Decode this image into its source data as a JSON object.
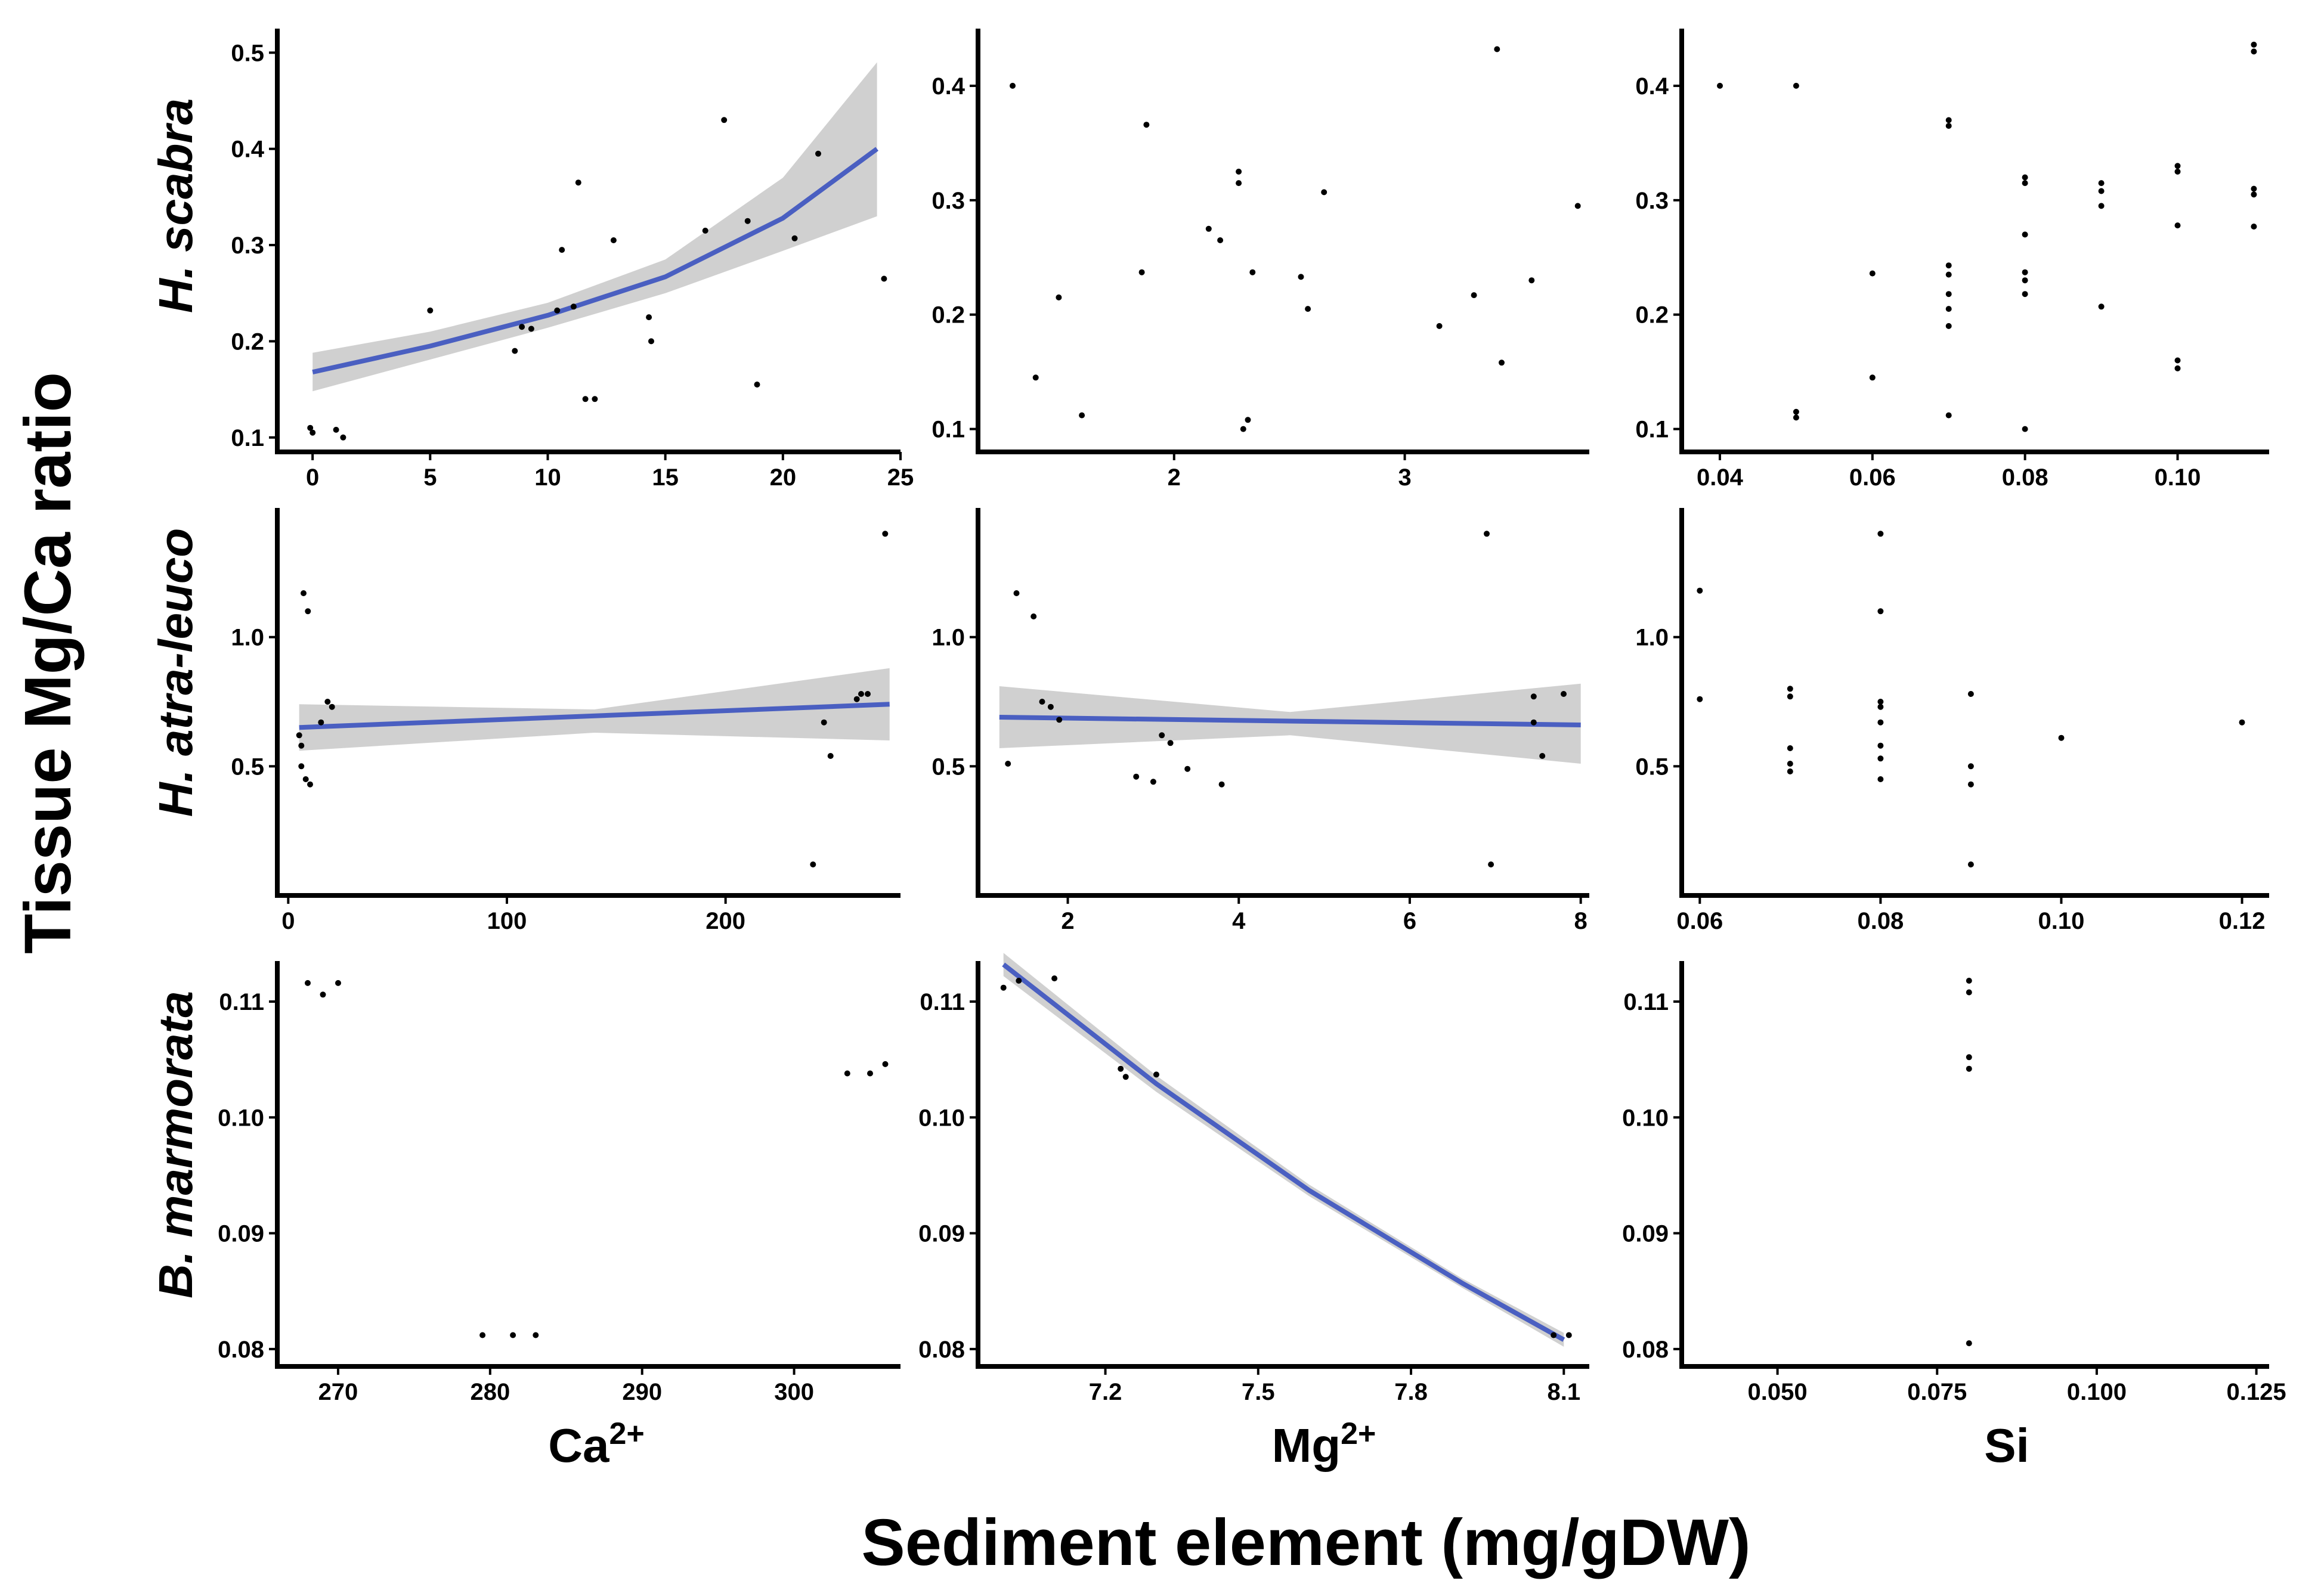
{
  "figure": {
    "ylabel": "Tissue Mg/Ca ratio",
    "xlabel": "Sediment element (mg/gDW)",
    "columns": [
      {
        "label": "Ca",
        "sup": "2+"
      },
      {
        "label": "Mg",
        "sup": "2+"
      },
      {
        "label": "Si",
        "sup": ""
      }
    ],
    "rows": [
      "H. scabra",
      "H. atra-leuco",
      "B. marmorata"
    ],
    "colors": {
      "fit": "#4a5fc1",
      "band": "#c8c8c8",
      "point": "#000000",
      "axis": "#000000"
    }
  },
  "chart_data": [
    {
      "type": "scatter",
      "species": "H. scabra",
      "element": "Ca2+",
      "xlim": [
        -1.5,
        25
      ],
      "ylim": [
        0.085,
        0.525
      ],
      "xticks": [
        0,
        5,
        10,
        15,
        20,
        25
      ],
      "xtick_labels": [
        "0",
        "5",
        "10",
        "15",
        "20",
        "25"
      ],
      "yticks": [
        0.1,
        0.2,
        0.3,
        0.4,
        0.5
      ],
      "ytick_labels": [
        "0.1",
        "0.2",
        "0.3",
        "0.4",
        "0.5"
      ],
      "points": [
        [
          -0.1,
          0.11
        ],
        [
          0,
          0.105
        ],
        [
          1,
          0.108
        ],
        [
          1.3,
          0.1
        ],
        [
          5,
          0.232
        ],
        [
          8.6,
          0.19
        ],
        [
          8.9,
          0.215
        ],
        [
          9.3,
          0.213
        ],
        [
          10.4,
          0.232
        ],
        [
          10.6,
          0.295
        ],
        [
          11.1,
          0.236
        ],
        [
          11.3,
          0.365
        ],
        [
          11.6,
          0.14
        ],
        [
          12,
          0.14
        ],
        [
          12.8,
          0.305
        ],
        [
          14.3,
          0.225
        ],
        [
          14.4,
          0.2
        ],
        [
          16.7,
          0.315
        ],
        [
          17.5,
          0.43
        ],
        [
          18.5,
          0.325
        ],
        [
          18.9,
          0.155
        ],
        [
          20.5,
          0.307
        ],
        [
          21.5,
          0.395
        ],
        [
          24.3,
          0.265
        ]
      ],
      "fit": {
        "x": [
          0,
          5,
          10,
          15,
          20,
          24
        ],
        "y": [
          0.168,
          0.195,
          0.227,
          0.267,
          0.328,
          0.4
        ]
      },
      "band": {
        "x": [
          0,
          5,
          10,
          15,
          20,
          24
        ],
        "lower": [
          0.148,
          0.181,
          0.214,
          0.25,
          0.294,
          0.33
        ],
        "upper": [
          0.188,
          0.21,
          0.24,
          0.285,
          0.37,
          0.49
        ]
      }
    },
    {
      "type": "scatter",
      "species": "H. scabra",
      "element": "Mg2+",
      "xlim": [
        1.15,
        3.8
      ],
      "ylim": [
        0.08,
        0.45
      ],
      "xticks": [
        2,
        3
      ],
      "xtick_labels": [
        "2",
        "3"
      ],
      "yticks": [
        0.1,
        0.2,
        0.3,
        0.4
      ],
      "ytick_labels": [
        "0.1",
        "0.2",
        "0.3",
        "0.4"
      ],
      "points": [
        [
          1.3,
          0.4
        ],
        [
          1.4,
          0.145
        ],
        [
          1.5,
          0.215
        ],
        [
          1.6,
          0.112
        ],
        [
          1.86,
          0.237
        ],
        [
          1.88,
          0.366
        ],
        [
          2.15,
          0.275
        ],
        [
          2.2,
          0.265
        ],
        [
          2.28,
          0.325
        ],
        [
          2.28,
          0.315
        ],
        [
          2.3,
          0.1
        ],
        [
          2.32,
          0.108
        ],
        [
          2.34,
          0.237
        ],
        [
          2.55,
          0.233
        ],
        [
          2.58,
          0.205
        ],
        [
          2.65,
          0.307
        ],
        [
          3.15,
          0.19
        ],
        [
          3.3,
          0.217
        ],
        [
          3.4,
          0.432
        ],
        [
          3.42,
          0.158
        ],
        [
          3.55,
          0.23
        ],
        [
          3.75,
          0.295
        ]
      ],
      "fit": null,
      "band": null
    },
    {
      "type": "scatter",
      "species": "H. scabra",
      "element": "Si",
      "xlim": [
        0.035,
        0.112
      ],
      "ylim": [
        0.08,
        0.45
      ],
      "xticks": [
        0.04,
        0.06,
        0.08,
        0.1
      ],
      "xtick_labels": [
        "0.04",
        "0.06",
        "0.08",
        "0.10"
      ],
      "yticks": [
        0.1,
        0.2,
        0.3,
        0.4
      ],
      "ytick_labels": [
        "0.1",
        "0.2",
        "0.3",
        "0.4"
      ],
      "points": [
        [
          0.04,
          0.4
        ],
        [
          0.05,
          0.4
        ],
        [
          0.05,
          0.115
        ],
        [
          0.05,
          0.11
        ],
        [
          0.06,
          0.236
        ],
        [
          0.06,
          0.145
        ],
        [
          0.07,
          0.37
        ],
        [
          0.07,
          0.365
        ],
        [
          0.07,
          0.243
        ],
        [
          0.07,
          0.235
        ],
        [
          0.07,
          0.218
        ],
        [
          0.07,
          0.205
        ],
        [
          0.07,
          0.19
        ],
        [
          0.07,
          0.112
        ],
        [
          0.08,
          0.32
        ],
        [
          0.08,
          0.315
        ],
        [
          0.08,
          0.27
        ],
        [
          0.08,
          0.237
        ],
        [
          0.08,
          0.23
        ],
        [
          0.08,
          0.218
        ],
        [
          0.08,
          0.1
        ],
        [
          0.09,
          0.315
        ],
        [
          0.09,
          0.308
        ],
        [
          0.09,
          0.295
        ],
        [
          0.09,
          0.207
        ],
        [
          0.1,
          0.33
        ],
        [
          0.1,
          0.325
        ],
        [
          0.1,
          0.278
        ],
        [
          0.1,
          0.16
        ],
        [
          0.1,
          0.153
        ],
        [
          0.11,
          0.436
        ],
        [
          0.11,
          0.43
        ],
        [
          0.11,
          0.31
        ],
        [
          0.11,
          0.305
        ],
        [
          0.11,
          0.277
        ]
      ],
      "fit": null,
      "band": null
    },
    {
      "type": "scatter",
      "species": "H. atra-leuco",
      "element": "Ca2+",
      "xlim": [
        -5,
        280
      ],
      "ylim": [
        0,
        1.5
      ],
      "xticks": [
        0,
        100,
        200
      ],
      "xtick_labels": [
        "0",
        "100",
        "200"
      ],
      "yticks": [
        0.5,
        1.0
      ],
      "ytick_labels": [
        "0.5",
        "1.0"
      ],
      "points": [
        [
          5,
          0.62
        ],
        [
          6,
          0.58
        ],
        [
          6,
          0.5
        ],
        [
          7,
          1.17
        ],
        [
          8,
          0.45
        ],
        [
          9,
          1.1
        ],
        [
          10,
          0.43
        ],
        [
          15,
          0.67
        ],
        [
          18,
          0.75
        ],
        [
          20,
          0.73
        ],
        [
          240,
          0.12
        ],
        [
          245,
          0.67
        ],
        [
          248,
          0.54
        ],
        [
          260,
          0.76
        ],
        [
          262,
          0.78
        ],
        [
          265,
          0.78
        ],
        [
          273,
          1.4
        ]
      ],
      "fit": {
        "x": [
          5,
          275
        ],
        "y": [
          0.65,
          0.74
        ]
      },
      "band": {
        "x": [
          5,
          140,
          275
        ],
        "lower": [
          0.56,
          0.63,
          0.6
        ],
        "upper": [
          0.74,
          0.72,
          0.88
        ]
      }
    },
    {
      "type": "scatter",
      "species": "H. atra-leuco",
      "element": "Mg2+",
      "xlim": [
        0.95,
        8.1
      ],
      "ylim": [
        0,
        1.5
      ],
      "xticks": [
        2,
        4,
        6,
        8
      ],
      "xtick_labels": [
        "2",
        "4",
        "6",
        "8"
      ],
      "yticks": [
        0.5,
        1.0
      ],
      "ytick_labels": [
        "0.5",
        "1.0"
      ],
      "points": [
        [
          1.3,
          0.51
        ],
        [
          1.4,
          1.17
        ],
        [
          1.6,
          1.08
        ],
        [
          1.7,
          0.75
        ],
        [
          1.8,
          0.73
        ],
        [
          1.9,
          0.68
        ],
        [
          2.8,
          0.46
        ],
        [
          3.0,
          0.44
        ],
        [
          3.1,
          0.62
        ],
        [
          3.2,
          0.59
        ],
        [
          3.4,
          0.49
        ],
        [
          3.8,
          0.43
        ],
        [
          6.9,
          1.4
        ],
        [
          6.95,
          0.12
        ],
        [
          7.45,
          0.77
        ],
        [
          7.45,
          0.67
        ],
        [
          7.55,
          0.54
        ],
        [
          7.8,
          0.78
        ]
      ],
      "fit": {
        "x": [
          1.2,
          8
        ],
        "y": [
          0.69,
          0.66
        ]
      },
      "band": {
        "x": [
          1.2,
          4.6,
          8
        ],
        "lower": [
          0.57,
          0.62,
          0.51
        ],
        "upper": [
          0.81,
          0.71,
          0.82
        ]
      }
    },
    {
      "type": "scatter",
      "species": "H. atra-leuco",
      "element": "Si",
      "xlim": [
        0.058,
        0.123
      ],
      "ylim": [
        0,
        1.5
      ],
      "xticks": [
        0.06,
        0.08,
        0.1,
        0.12
      ],
      "xtick_labels": [
        "0.06",
        "0.08",
        "0.10",
        "0.12"
      ],
      "yticks": [
        0.5,
        1.0
      ],
      "ytick_labels": [
        "0.5",
        "1.0"
      ],
      "points": [
        [
          0.06,
          1.18
        ],
        [
          0.06,
          0.76
        ],
        [
          0.07,
          0.8
        ],
        [
          0.07,
          0.77
        ],
        [
          0.07,
          0.57
        ],
        [
          0.07,
          0.51
        ],
        [
          0.07,
          0.48
        ],
        [
          0.08,
          1.4
        ],
        [
          0.08,
          1.1
        ],
        [
          0.08,
          0.75
        ],
        [
          0.08,
          0.73
        ],
        [
          0.08,
          0.67
        ],
        [
          0.08,
          0.58
        ],
        [
          0.08,
          0.53
        ],
        [
          0.08,
          0.45
        ],
        [
          0.09,
          0.78
        ],
        [
          0.09,
          0.5
        ],
        [
          0.09,
          0.43
        ],
        [
          0.09,
          0.12
        ],
        [
          0.1,
          0.61
        ],
        [
          0.12,
          0.67
        ]
      ],
      "fit": null,
      "band": null
    },
    {
      "type": "scatter",
      "species": "B. marmorata",
      "element": "Ca2+",
      "xlim": [
        266,
        307
      ],
      "ylim": [
        0.0785,
        0.1135
      ],
      "xticks": [
        270,
        280,
        290,
        300
      ],
      "xtick_labels": [
        "270",
        "280",
        "290",
        "300"
      ],
      "yticks": [
        0.08,
        0.09,
        0.1,
        0.11
      ],
      "ytick_labels": [
        "0.08",
        "0.09",
        "0.10",
        "0.11"
      ],
      "points": [
        [
          268,
          0.1116
        ],
        [
          269,
          0.1106
        ],
        [
          270,
          0.1116
        ],
        [
          279.5,
          0.0812
        ],
        [
          281.5,
          0.0812
        ],
        [
          283,
          0.0812
        ],
        [
          303.5,
          0.1038
        ],
        [
          305,
          0.1038
        ],
        [
          306,
          0.1046
        ]
      ],
      "fit": null,
      "band": null
    },
    {
      "type": "scatter",
      "species": "B. marmorata",
      "element": "Mg2+",
      "xlim": [
        6.95,
        8.15
      ],
      "ylim": [
        0.0785,
        0.1135
      ],
      "xticks": [
        7.2,
        7.5,
        7.8,
        8.1
      ],
      "xtick_labels": [
        "7.2",
        "7.5",
        "7.8",
        "8.1"
      ],
      "yticks": [
        0.08,
        0.09,
        0.1,
        0.11
      ],
      "ytick_labels": [
        "0.08",
        "0.09",
        "0.10",
        "0.11"
      ],
      "points": [
        [
          7.0,
          0.1112
        ],
        [
          7.03,
          0.1118
        ],
        [
          7.1,
          0.112
        ],
        [
          7.23,
          0.1042
        ],
        [
          7.24,
          0.1035
        ],
        [
          7.3,
          0.1037
        ],
        [
          8.08,
          0.0812
        ],
        [
          8.11,
          0.0812
        ]
      ],
      "fit": {
        "x": [
          7.0,
          7.3,
          7.6,
          7.9,
          8.1
        ],
        "y": [
          0.1132,
          0.1029,
          0.0937,
          0.0857,
          0.0808
        ]
      },
      "band": {
        "x": [
          7.0,
          7.3,
          7.6,
          7.9,
          8.1
        ],
        "lower": [
          0.1122,
          0.1022,
          0.0932,
          0.0853,
          0.0802
        ],
        "upper": [
          0.1142,
          0.1036,
          0.0942,
          0.0861,
          0.0814
        ]
      }
    },
    {
      "type": "scatter",
      "species": "B. marmorata",
      "element": "Si",
      "xlim": [
        0.035,
        0.127
      ],
      "ylim": [
        0.0785,
        0.1135
      ],
      "xticks": [
        0.05,
        0.075,
        0.1,
        0.125
      ],
      "xtick_labels": [
        "0.050",
        "0.075",
        "0.100",
        "0.125"
      ],
      "yticks": [
        0.08,
        0.09,
        0.1,
        0.11
      ],
      "ytick_labels": [
        "0.08",
        "0.09",
        "0.10",
        "0.11"
      ],
      "points": [
        [
          0.08,
          0.1118
        ],
        [
          0.08,
          0.1108
        ],
        [
          0.08,
          0.1052
        ],
        [
          0.08,
          0.1042
        ],
        [
          0.08,
          0.0805
        ]
      ],
      "fit": null,
      "band": null
    }
  ]
}
